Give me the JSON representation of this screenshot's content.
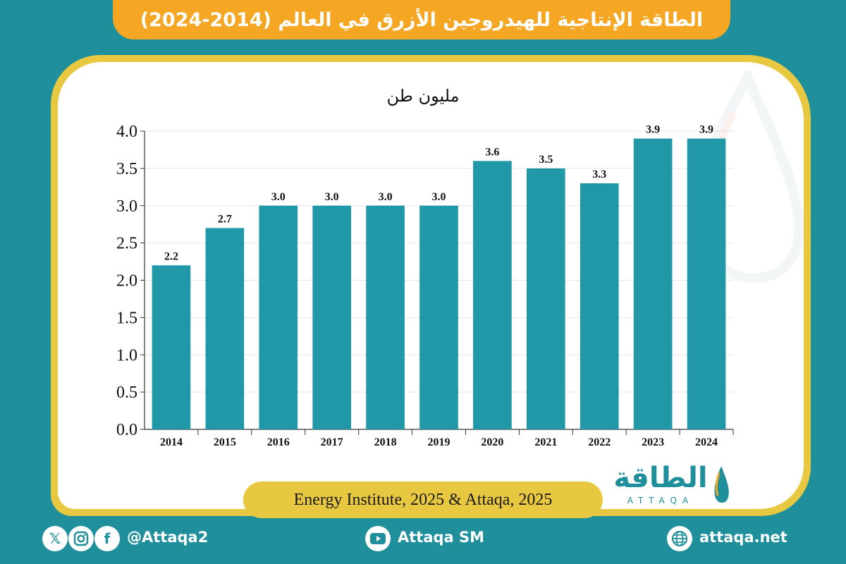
{
  "header": {
    "title": "الطاقة الإنتاجية للهيدروجين الأزرق في العالم (2014-2024)"
  },
  "chart_data": {
    "type": "bar",
    "unit_label": "مليون طن",
    "categories": [
      "2014",
      "2015",
      "2016",
      "2017",
      "2018",
      "2019",
      "2020",
      "2021",
      "2022",
      "2023",
      "2024"
    ],
    "values": [
      2.2,
      2.7,
      3.0,
      3.0,
      3.0,
      3.0,
      3.6,
      3.5,
      3.3,
      3.9,
      3.9
    ],
    "value_labels": [
      "2.2",
      "2.7",
      "3.0",
      "3.0",
      "3.0",
      "3.0",
      "3.6",
      "3.5",
      "3.3",
      "3.9",
      "3.9"
    ],
    "ylim": [
      0,
      4.0
    ],
    "yticks": [
      "0.0",
      "0.5",
      "1.0",
      "1.5",
      "2.0",
      "2.5",
      "3.0",
      "3.5",
      "4.0"
    ],
    "grid": true,
    "bar_color": "#2198a8"
  },
  "source": {
    "text": "Energy Institute, 2025 & Attaqa, 2025"
  },
  "logo": {
    "arabic": "الطاقة",
    "latin": "ATTAQA"
  },
  "footer": {
    "handle": "@Attaqa2",
    "youtube": "Attaqa SM",
    "website": "attaqa.net",
    "icons": [
      "x-icon",
      "instagram-icon",
      "facebook-icon",
      "youtube-icon",
      "globe-icon"
    ]
  },
  "colors": {
    "background": "#1f8f9c",
    "title_bar": "#f5a623",
    "frame": "#e8c840",
    "panel": "#ffffff"
  }
}
